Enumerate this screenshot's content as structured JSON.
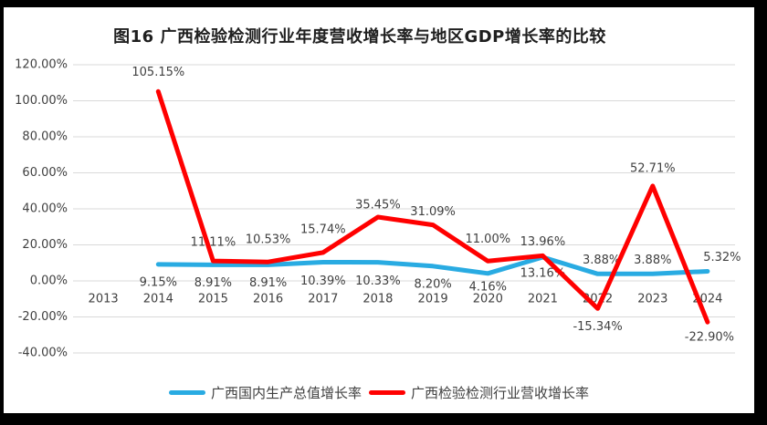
{
  "frame": {
    "background": "#000000",
    "canvas_background": "#FFFFFF"
  },
  "chart_data": {
    "type": "line",
    "title": "图16 广西检验检测行业年度营收增长率与地区GDP增长率的比较",
    "categories": [
      "2013",
      "2014",
      "2015",
      "2016",
      "2017",
      "2018",
      "2019",
      "2020",
      "2021",
      "2022",
      "2023",
      "2024"
    ],
    "series": [
      {
        "name": "广西国内生产总值增长率",
        "color": "#29ABE2",
        "values": [
          null,
          9.15,
          8.91,
          8.91,
          10.39,
          10.33,
          8.2,
          4.16,
          13.16,
          3.88,
          3.88,
          5.32
        ],
        "labels": [
          null,
          "9.15%",
          "8.91%",
          "8.91%",
          "10.39%",
          "10.33%",
          "8.20%",
          "4.16%",
          "13.16%",
          "3.88%",
          "3.88%",
          "5.32%"
        ],
        "label_offsets": [
          null,
          [
            0,
            20
          ],
          [
            0,
            20
          ],
          [
            0,
            20
          ],
          [
            0,
            21
          ],
          [
            0,
            21
          ],
          [
            0,
            20
          ],
          [
            0,
            15
          ],
          [
            0,
            18
          ],
          [
            4,
            -15
          ],
          [
            0,
            -15
          ],
          [
            16,
            -15
          ]
        ]
      },
      {
        "name": "广西检验检测行业营收增长率",
        "color": "#FF0000",
        "values": [
          null,
          105.15,
          11.11,
          10.53,
          15.74,
          35.45,
          31.09,
          11.0,
          13.96,
          -15.34,
          52.71,
          -22.9
        ],
        "labels": [
          null,
          "105.15%",
          "11.11%",
          "10.53%",
          "15.74%",
          "35.45%",
          "31.09%",
          "11.00%",
          "13.96%",
          "-15.34%",
          "52.71%",
          "-22.90%"
        ],
        "label_offsets": [
          null,
          [
            0,
            -21
          ],
          [
            0,
            -20
          ],
          [
            0,
            -24
          ],
          [
            0,
            -25
          ],
          [
            0,
            -13
          ],
          [
            0,
            -14
          ],
          [
            0,
            -24
          ],
          [
            0,
            -15
          ],
          [
            0,
            20
          ],
          [
            0,
            -19
          ],
          [
            2,
            17
          ]
        ]
      }
    ],
    "ylim": [
      -40,
      120
    ],
    "ytick_step": 20,
    "yticks": [
      "120.00%",
      "100.00%",
      "80.00%",
      "60.00%",
      "40.00%",
      "20.00%",
      "0.00%",
      "-20.00%",
      "-40.00%"
    ],
    "grid": "horizontal-only",
    "grid_color": "#D9D9D9",
    "label_color": "#404040",
    "legend_position": "bottom",
    "line_width": 5
  }
}
